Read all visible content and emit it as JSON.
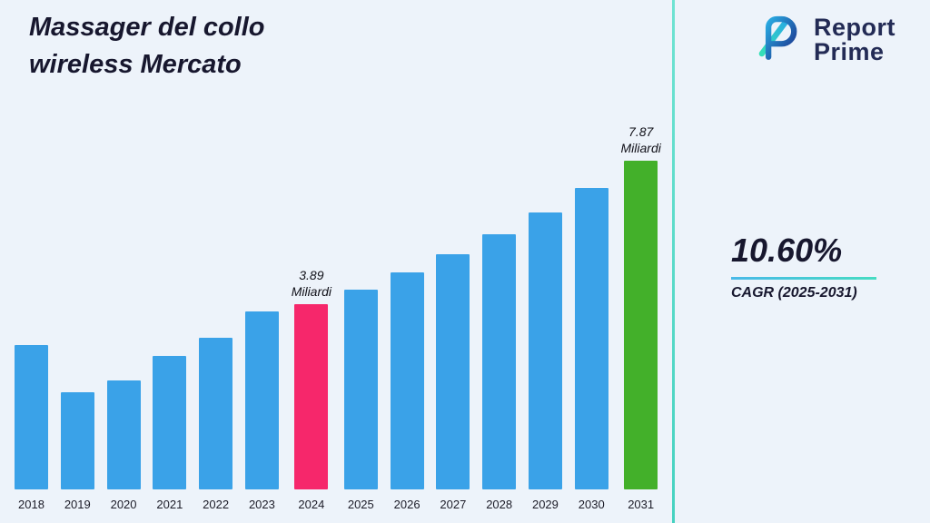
{
  "title_lines": [
    "Massager del collo",
    "wireless Mercato"
  ],
  "logo": {
    "name": "Report Prime",
    "line1": "Report",
    "line2": "Prime",
    "brand_blue": "#1d3a8f",
    "brand_teal": "#3fd6b4"
  },
  "stats": {
    "cagr_value": "10.60%",
    "cagr_label": "CAGR (2025-2031)"
  },
  "chart_data": {
    "type": "bar",
    "title": "Massager del collo wireless Mercato",
    "xlabel": "",
    "ylabel": "",
    "unit": "Miliardi",
    "grid": false,
    "legend": false,
    "categories": [
      "2018",
      "2019",
      "2020",
      "2021",
      "2022",
      "2023",
      "2024",
      "2025",
      "2026",
      "2027",
      "2028",
      "2029",
      "2030",
      "2031"
    ],
    "values": [
      2.74,
      1.44,
      1.76,
      2.45,
      2.96,
      3.69,
      3.89,
      4.3,
      4.76,
      5.26,
      5.82,
      6.43,
      7.12,
      7.87
    ],
    "bar_color": "#3AA2E8",
    "highlights": {
      "2024": {
        "color": "#F6276B",
        "annotation": [
          "3.89",
          "Miliardi"
        ]
      },
      "2031": {
        "color": "#43B02A",
        "annotation": [
          "7.87",
          "Miliardi"
        ]
      }
    }
  }
}
